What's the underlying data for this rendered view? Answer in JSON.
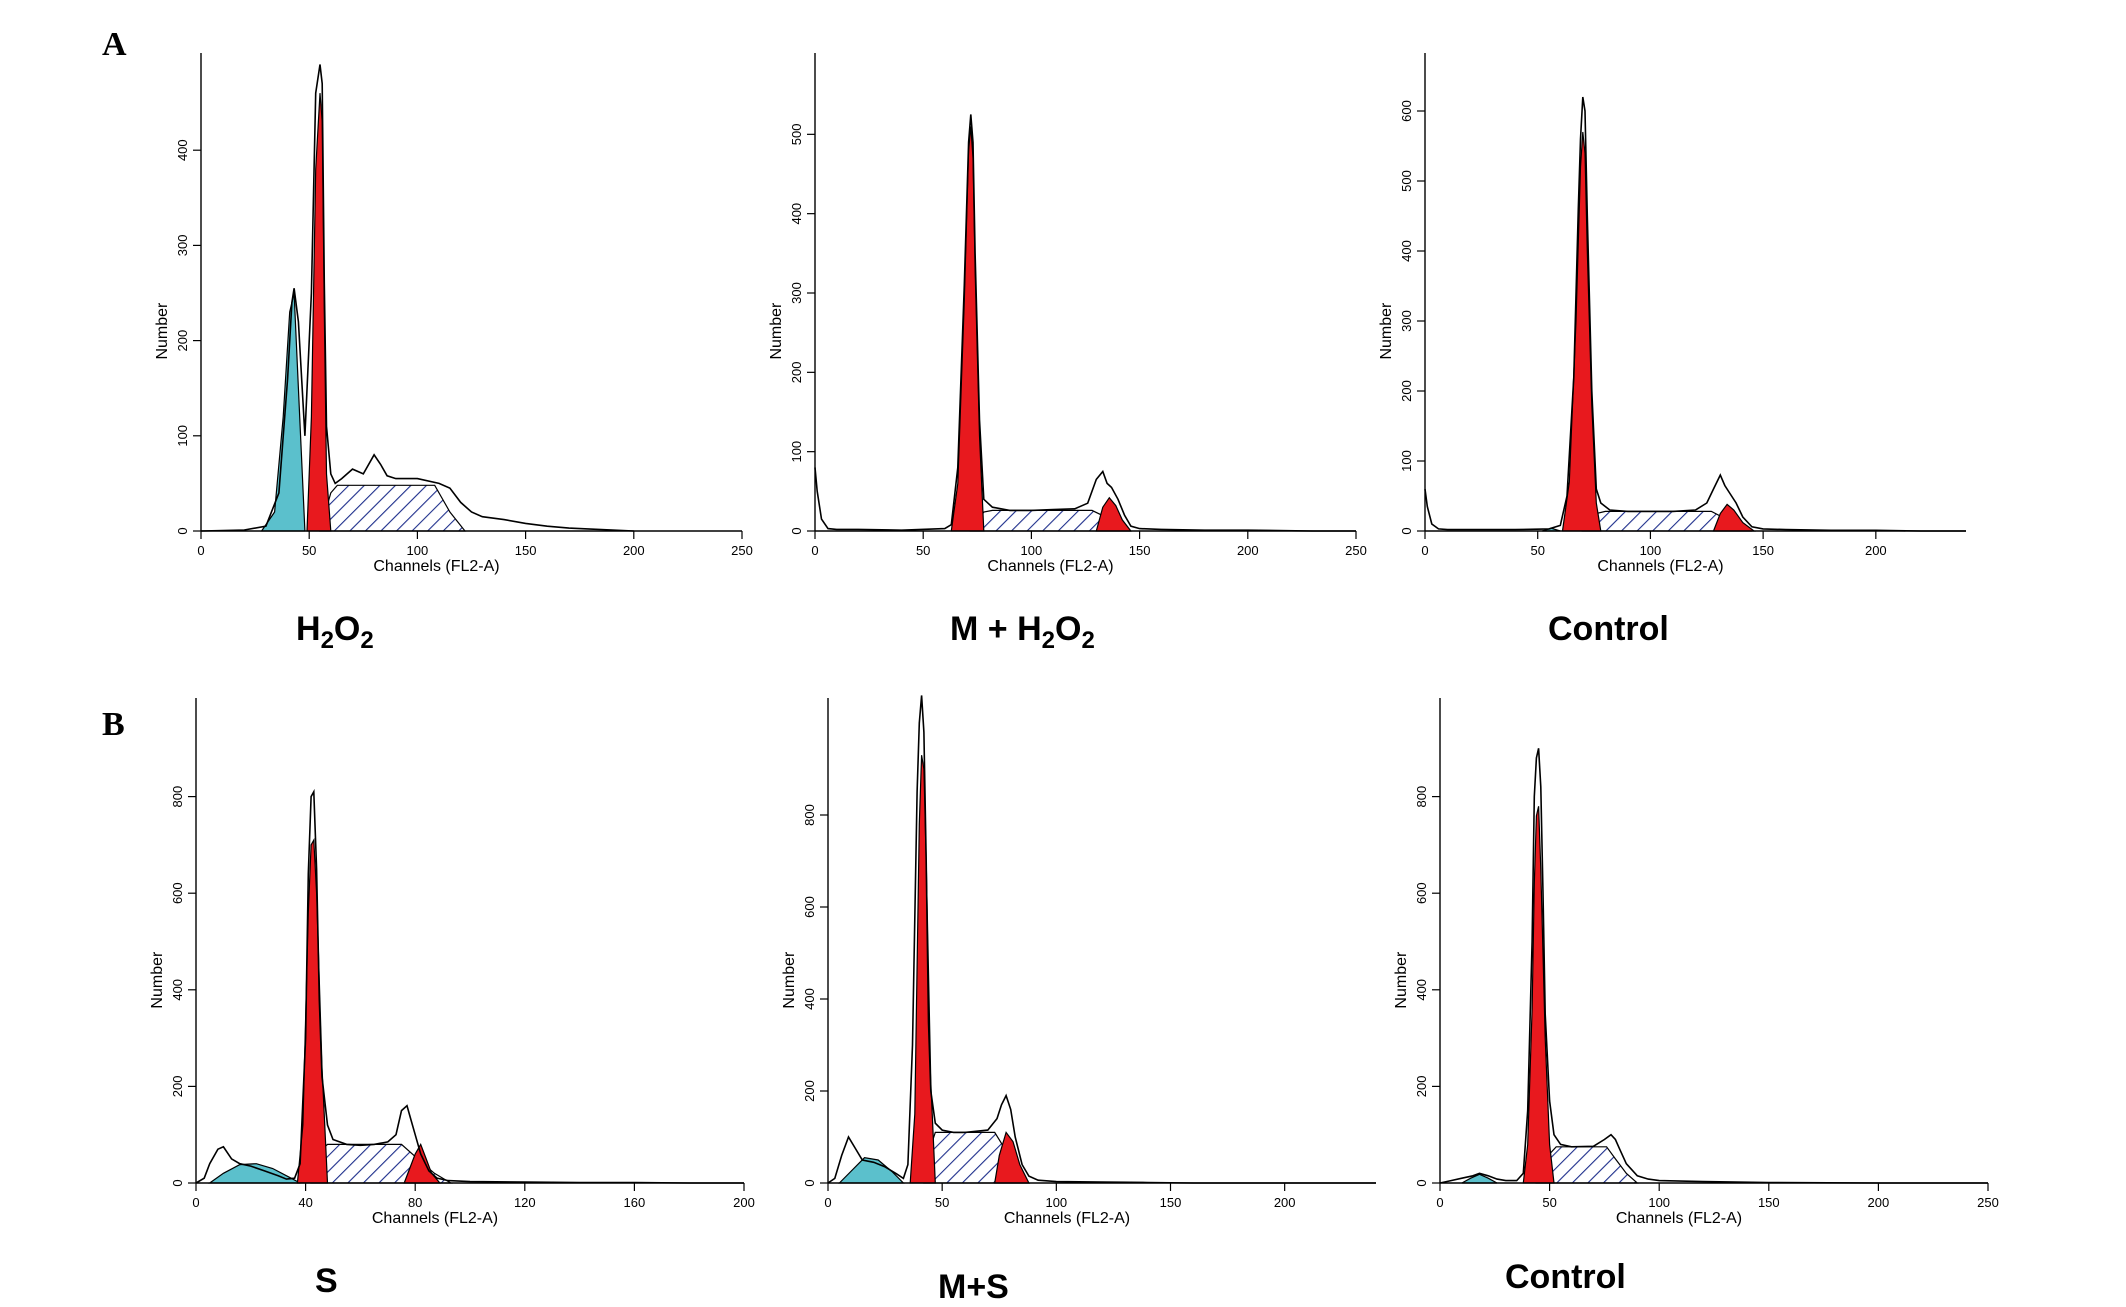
{
  "panel_labels": [
    "A",
    "B"
  ],
  "captions": [
    {
      "parts": [
        [
          "H",
          ""
        ],
        [
          "2",
          "sub"
        ],
        [
          "O",
          ""
        ],
        [
          "2",
          "sub"
        ]
      ]
    },
    {
      "parts": [
        [
          "M + H",
          ""
        ],
        [
          "2",
          "sub"
        ],
        [
          "O",
          ""
        ],
        [
          "2",
          "sub"
        ]
      ]
    },
    {
      "parts": [
        [
          "Control",
          ""
        ]
      ]
    },
    {
      "parts": [
        [
          "S",
          ""
        ]
      ]
    },
    {
      "parts": [
        [
          "M+S",
          ""
        ]
      ]
    },
    {
      "parts": [
        [
          "Control",
          ""
        ]
      ]
    }
  ],
  "colors": {
    "apoptotic_fill": "#5bc0cc",
    "g1_fill": "#e8191e",
    "g2_fill": "#e8191e",
    "s_hatch": "#1e2f8c",
    "outline": "#000000"
  },
  "chart_data": [
    {
      "type": "area",
      "panel": "A",
      "name": "H2O2",
      "xlabel": "Channels (FL2-A)",
      "ylabel": "Number",
      "xlim": [
        0,
        250
      ],
      "ylim": [
        0,
        500
      ],
      "xticks": [
        0,
        50,
        100,
        150,
        200,
        250
      ],
      "yticks": [
        0,
        100,
        200,
        300,
        400
      ],
      "apoptotic": {
        "x": [
          28,
          34,
          38,
          41,
          43,
          45,
          48
        ],
        "y": [
          0,
          20,
          120,
          230,
          250,
          150,
          0
        ]
      },
      "g1": {
        "x": [
          49,
          51,
          53,
          55,
          56,
          57,
          58,
          60
        ],
        "y": [
          0,
          120,
          380,
          460,
          430,
          230,
          60,
          0
        ]
      },
      "s": {
        "x": [
          55,
          60,
          63,
          108,
          115,
          122
        ],
        "y": [
          0,
          40,
          48,
          48,
          20,
          0
        ]
      },
      "g2": null,
      "outline": {
        "x": [
          0,
          20,
          30,
          36,
          40,
          42,
          43,
          45,
          48,
          51,
          53,
          55,
          56,
          57,
          58,
          60,
          62,
          65,
          70,
          75,
          80,
          83,
          86,
          90,
          100,
          110,
          115,
          120,
          125,
          130,
          140,
          150,
          160,
          170,
          180,
          190,
          200
        ],
        "y": [
          0,
          1,
          5,
          40,
          160,
          240,
          255,
          220,
          100,
          250,
          460,
          490,
          470,
          260,
          110,
          60,
          50,
          55,
          65,
          60,
          80,
          70,
          58,
          55,
          55,
          50,
          45,
          30,
          20,
          15,
          12,
          8,
          5,
          3,
          2,
          1,
          0
        ]
      }
    },
    {
      "type": "area",
      "panel": "A",
      "name": "M + H2O2",
      "xlabel": "Channels (FL2-A)",
      "ylabel": "Number",
      "xlim": [
        0,
        250
      ],
      "ylim": [
        0,
        600
      ],
      "xticks": [
        0,
        50,
        100,
        150,
        200,
        250
      ],
      "yticks": [
        0,
        100,
        200,
        300,
        400,
        500
      ],
      "apoptotic": null,
      "g1": {
        "x": [
          63,
          66,
          69,
          71,
          72,
          73,
          74,
          76,
          78
        ],
        "y": [
          0,
          60,
          290,
          480,
          510,
          470,
          330,
          120,
          0
        ]
      },
      "s": {
        "x": [
          72,
          78,
          82,
          128,
          134,
          140,
          146
        ],
        "y": [
          0,
          24,
          26,
          26,
          18,
          8,
          0
        ]
      },
      "g2": {
        "x": [
          130,
          133,
          136,
          139,
          142,
          146
        ],
        "y": [
          0,
          30,
          42,
          32,
          14,
          0
        ]
      },
      "outline": {
        "x": [
          0,
          1,
          3,
          6,
          10,
          20,
          40,
          60,
          63,
          66,
          69,
          71,
          72,
          73,
          74,
          76,
          78,
          82,
          90,
          100,
          110,
          120,
          126,
          130,
          133,
          135,
          137,
          140,
          143,
          146,
          150,
          160,
          180,
          200,
          230,
          250
        ],
        "y": [
          80,
          50,
          15,
          3,
          2,
          2,
          1,
          3,
          8,
          80,
          310,
          490,
          525,
          490,
          350,
          140,
          40,
          30,
          26,
          26,
          27,
          28,
          35,
          65,
          75,
          60,
          55,
          40,
          20,
          6,
          3,
          2,
          1,
          1,
          0,
          0
        ]
      }
    },
    {
      "type": "area",
      "panel": "A",
      "name": "Control",
      "xlabel": "Channels (FL2-A)",
      "ylabel": "Number",
      "xlim": [
        0,
        240
      ],
      "ylim": [
        0,
        680
      ],
      "xticks": [
        0,
        50,
        100,
        150,
        200
      ],
      "yticks": [
        0,
        100,
        200,
        300,
        400,
        500,
        600
      ],
      "apoptotic": {
        "x": [
          52,
          56,
          60
        ],
        "y": [
          0,
          4,
          0
        ]
      },
      "g1": {
        "x": [
          61,
          64,
          67,
          69,
          70,
          71,
          72,
          74,
          76,
          78
        ],
        "y": [
          0,
          70,
          300,
          520,
          570,
          540,
          400,
          180,
          40,
          0
        ]
      },
      "s": {
        "x": [
          70,
          76,
          80,
          127,
          133,
          139,
          145
        ],
        "y": [
          0,
          25,
          28,
          28,
          18,
          8,
          0
        ]
      },
      "g2": {
        "x": [
          128,
          131,
          134,
          137,
          141,
          146
        ],
        "y": [
          0,
          25,
          38,
          30,
          12,
          0
        ]
      },
      "outline": {
        "x": [
          0,
          1,
          3,
          6,
          10,
          20,
          40,
          55,
          60,
          63,
          66,
          68,
          69,
          70,
          71,
          72,
          74,
          76,
          78,
          82,
          90,
          100,
          110,
          120,
          125,
          128,
          131,
          133,
          135,
          138,
          141,
          145,
          150,
          160,
          180,
          200,
          220,
          240
        ],
        "y": [
          60,
          35,
          10,
          3,
          2,
          2,
          2,
          3,
          8,
          50,
          220,
          460,
          560,
          620,
          600,
          450,
          200,
          60,
          40,
          30,
          28,
          28,
          28,
          30,
          40,
          60,
          80,
          65,
          55,
          40,
          20,
          6,
          3,
          2,
          1,
          1,
          0,
          0
        ]
      }
    },
    {
      "type": "area",
      "panel": "B",
      "name": "S",
      "xlabel": "Channels (FL2-A)",
      "ylabel": "Number",
      "xlim": [
        0,
        200
      ],
      "ylim": [
        0,
        1000
      ],
      "xticks": [
        0,
        40,
        80,
        120,
        160,
        200
      ],
      "yticks": [
        0,
        200,
        400,
        600,
        800
      ],
      "apoptotic": {
        "x": [
          5,
          10,
          16,
          22,
          28,
          34,
          38
        ],
        "y": [
          0,
          20,
          38,
          40,
          30,
          12,
          0
        ]
      },
      "g1": {
        "x": [
          37,
          39,
          41,
          42,
          43,
          44,
          46,
          48
        ],
        "y": [
          0,
          120,
          560,
          700,
          710,
          600,
          240,
          0
        ]
      },
      "s": {
        "x": [
          42,
          46,
          48,
          75,
          81,
          87,
          93
        ],
        "y": [
          0,
          70,
          80,
          80,
          50,
          20,
          0
        ]
      },
      "g2": {
        "x": [
          76,
          78,
          80,
          82,
          84,
          86,
          89
        ],
        "y": [
          0,
          30,
          60,
          80,
          50,
          20,
          0
        ]
      },
      "outline": {
        "x": [
          0,
          3,
          5,
          8,
          10,
          13,
          16,
          20,
          25,
          30,
          33,
          36,
          38,
          40,
          41,
          42,
          43,
          44,
          45,
          46,
          48,
          50,
          55,
          60,
          65,
          70,
          73,
          75,
          77,
          78,
          80,
          82,
          85,
          88,
          92,
          100,
          120,
          140,
          160,
          180,
          200
        ],
        "y": [
          0,
          10,
          40,
          70,
          75,
          50,
          40,
          35,
          25,
          15,
          8,
          10,
          40,
          300,
          640,
          800,
          810,
          650,
          380,
          220,
          120,
          90,
          80,
          78,
          80,
          85,
          100,
          150,
          160,
          140,
          100,
          60,
          25,
          10,
          5,
          3,
          2,
          1,
          1,
          0,
          0
        ]
      }
    },
    {
      "type": "area",
      "panel": "B",
      "name": "M+S",
      "xlabel": "Channels (FL2-A)",
      "ylabel": "Number",
      "xlim": [
        0,
        240
      ],
      "ylim": [
        0,
        1050
      ],
      "xticks": [
        0,
        50,
        100,
        150,
        200
      ],
      "yticks": [
        0,
        200,
        400,
        600,
        800
      ],
      "apoptotic": {
        "x": [
          5,
          10,
          16,
          22,
          28,
          33
        ],
        "y": [
          0,
          25,
          55,
          50,
          25,
          0
        ]
      },
      "g1": {
        "x": [
          36,
          38,
          40,
          41,
          42,
          43,
          45,
          47
        ],
        "y": [
          0,
          150,
          780,
          930,
          900,
          700,
          220,
          0
        ]
      },
      "s": {
        "x": [
          42,
          45,
          47,
          73,
          78,
          83,
          88
        ],
        "y": [
          0,
          80,
          110,
          110,
          70,
          30,
          0
        ]
      },
      "g2": {
        "x": [
          73,
          75,
          78,
          81,
          84,
          88
        ],
        "y": [
          0,
          60,
          110,
          90,
          40,
          0
        ]
      },
      "outline": {
        "x": [
          0,
          3,
          6,
          9,
          12,
          15,
          20,
          25,
          30,
          33,
          35,
          37,
          39,
          40,
          41,
          42,
          43,
          44,
          45,
          47,
          50,
          55,
          60,
          70,
          74,
          76,
          78,
          80,
          82,
          85,
          88,
          92,
          100,
          120,
          140,
          160,
          200,
          240
        ],
        "y": [
          0,
          10,
          60,
          100,
          75,
          50,
          45,
          35,
          20,
          10,
          40,
          300,
          850,
          1000,
          1060,
          980,
          700,
          350,
          200,
          130,
          115,
          110,
          110,
          115,
          140,
          170,
          190,
          160,
          100,
          40,
          15,
          6,
          3,
          2,
          1,
          0,
          0,
          0
        ]
      }
    },
    {
      "type": "area",
      "panel": "B",
      "name": "Control",
      "xlabel": "Channels (FL2-A)",
      "ylabel": "Number",
      "xlim": [
        0,
        250
      ],
      "ylim": [
        0,
        1000
      ],
      "xticks": [
        0,
        50,
        100,
        150,
        200,
        250
      ],
      "yticks": [
        0,
        200,
        400,
        600,
        800
      ],
      "apoptotic": {
        "x": [
          10,
          14,
          18,
          22,
          26
        ],
        "y": [
          0,
          10,
          18,
          10,
          0
        ]
      },
      "g1": {
        "x": [
          38,
          40,
          42,
          43,
          44,
          45,
          46,
          48,
          50,
          52
        ],
        "y": [
          0,
          80,
          360,
          620,
          760,
          780,
          650,
          300,
          80,
          0
        ]
      },
      "s": {
        "x": [
          44,
          50,
          53,
          76,
          80,
          85,
          90
        ],
        "y": [
          0,
          60,
          75,
          75,
          50,
          20,
          0
        ]
      },
      "g2": null,
      "outline": {
        "x": [
          0,
          5,
          10,
          15,
          18,
          22,
          26,
          30,
          35,
          38,
          40,
          42,
          43,
          44,
          45,
          46,
          47,
          48,
          50,
          52,
          55,
          60,
          70,
          75,
          78,
          80,
          82,
          85,
          90,
          95,
          100,
          120,
          150,
          200,
          250
        ],
        "y": [
          0,
          5,
          10,
          15,
          20,
          15,
          8,
          5,
          5,
          20,
          150,
          500,
          800,
          880,
          900,
          820,
          600,
          350,
          170,
          100,
          80,
          75,
          76,
          90,
          100,
          90,
          70,
          40,
          15,
          8,
          5,
          3,
          1,
          0,
          0
        ]
      }
    }
  ]
}
